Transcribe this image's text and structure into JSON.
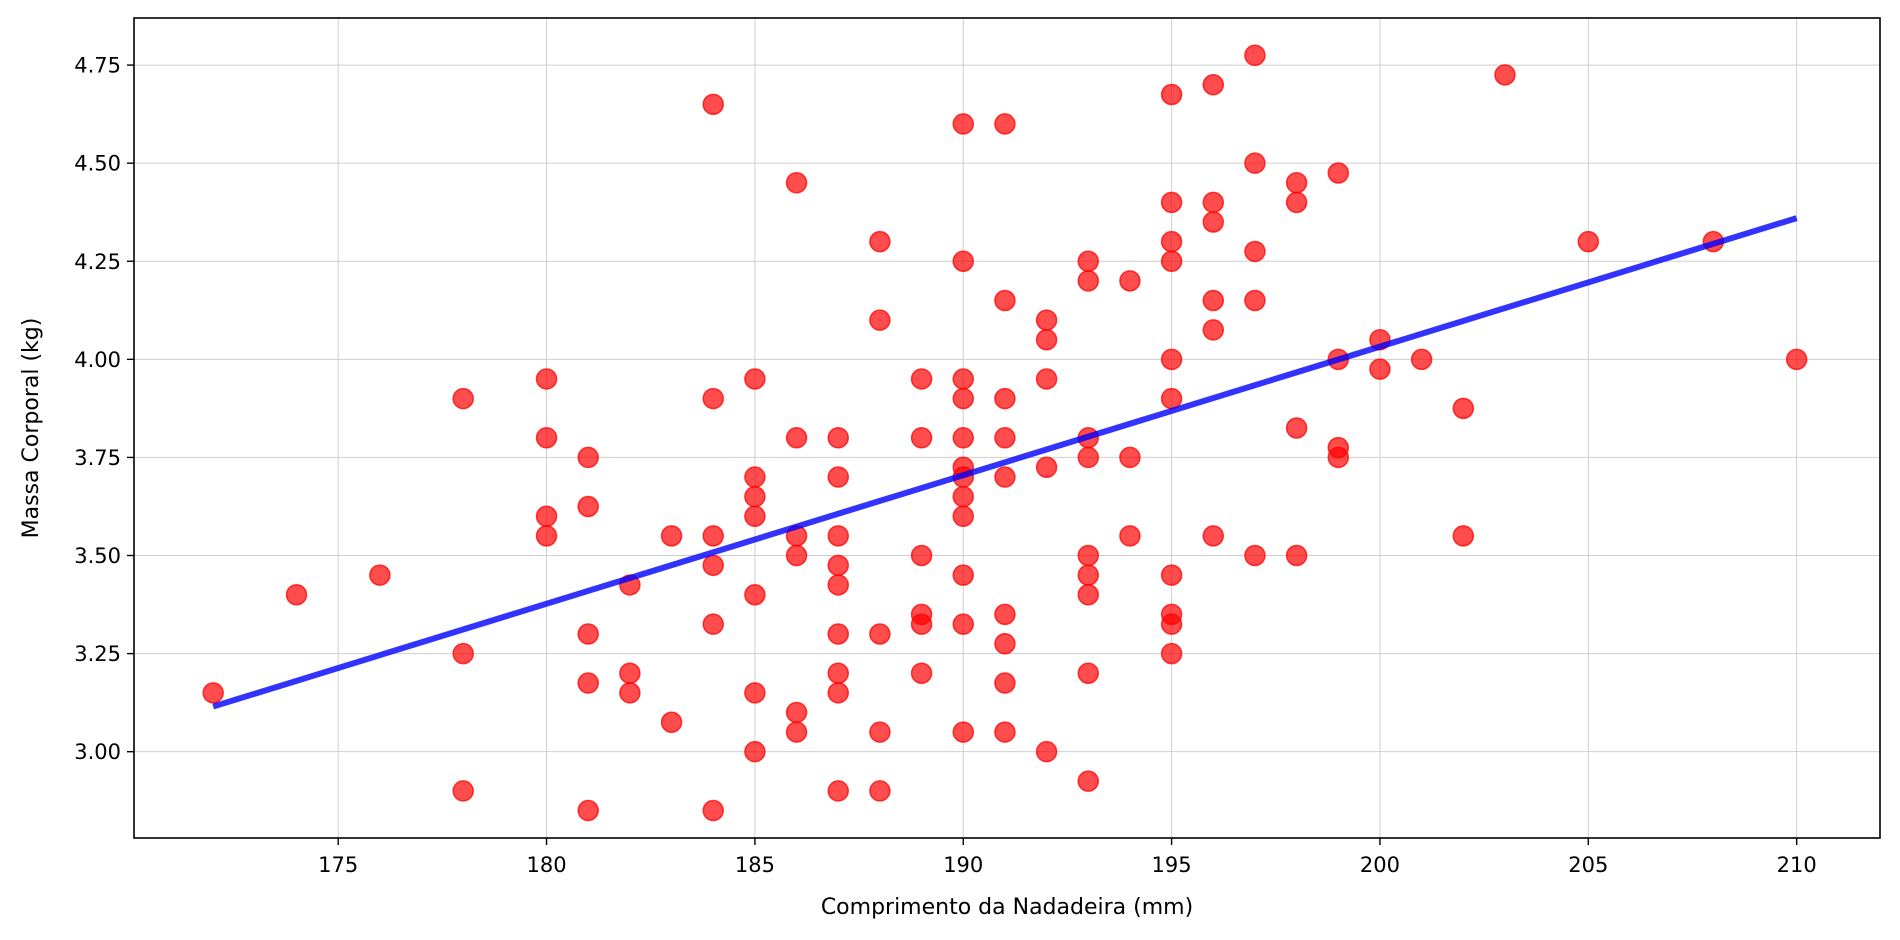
{
  "chart_data": {
    "type": "scatter",
    "title": "",
    "xlabel": "Comprimento da Nadadeira (mm)",
    "ylabel": "Massa Corporal (kg)",
    "xlim": [
      170.1,
      212.0
    ],
    "ylim": [
      2.78,
      4.87
    ],
    "x_ticks": [
      175,
      180,
      185,
      190,
      195,
      200,
      205,
      210
    ],
    "y_ticks": [
      3.0,
      3.25,
      3.5,
      3.75,
      4.0,
      4.25,
      4.5,
      4.75
    ],
    "x_tick_labels": [
      "175",
      "180",
      "185",
      "190",
      "195",
      "200",
      "205",
      "210"
    ],
    "y_tick_labels": [
      "3.00",
      "3.25",
      "3.50",
      "3.75",
      "4.00",
      "4.25",
      "4.50",
      "4.75"
    ],
    "grid": true,
    "legend": "none",
    "colors": {
      "points": "#ff0000",
      "trend": "#0000ff"
    },
    "points": [
      [
        172,
        3.15
      ],
      [
        174,
        3.4
      ],
      [
        176,
        3.45
      ],
      [
        178,
        3.9
      ],
      [
        178,
        3.25
      ],
      [
        178,
        2.9
      ],
      [
        180,
        3.95
      ],
      [
        180,
        3.8
      ],
      [
        180,
        3.6
      ],
      [
        180,
        3.55
      ],
      [
        181,
        3.75
      ],
      [
        181,
        3.625
      ],
      [
        181,
        3.3
      ],
      [
        181,
        3.175
      ],
      [
        181,
        2.85
      ],
      [
        182,
        3.425
      ],
      [
        182,
        3.2
      ],
      [
        182,
        3.15
      ],
      [
        183,
        3.55
      ],
      [
        183,
        3.075
      ],
      [
        184,
        4.65
      ],
      [
        184,
        3.9
      ],
      [
        184,
        3.55
      ],
      [
        184,
        3.475
      ],
      [
        184,
        3.325
      ],
      [
        184,
        2.85
      ],
      [
        185,
        3.95
      ],
      [
        185,
        3.7
      ],
      [
        185,
        3.65
      ],
      [
        185,
        3.6
      ],
      [
        185,
        3.4
      ],
      [
        185,
        3.15
      ],
      [
        185,
        3.0
      ],
      [
        186,
        4.45
      ],
      [
        186,
        3.8
      ],
      [
        186,
        3.55
      ],
      [
        186,
        3.5
      ],
      [
        186,
        3.1
      ],
      [
        186,
        3.05
      ],
      [
        187,
        3.8
      ],
      [
        187,
        3.7
      ],
      [
        187,
        3.55
      ],
      [
        187,
        3.475
      ],
      [
        187,
        3.425
      ],
      [
        187,
        3.3
      ],
      [
        187,
        3.2
      ],
      [
        187,
        3.15
      ],
      [
        187,
        2.9
      ],
      [
        188,
        4.3
      ],
      [
        188,
        4.1
      ],
      [
        188,
        3.3
      ],
      [
        188,
        3.05
      ],
      [
        188,
        2.9
      ],
      [
        189,
        3.95
      ],
      [
        189,
        3.8
      ],
      [
        189,
        3.5
      ],
      [
        189,
        3.35
      ],
      [
        189,
        3.325
      ],
      [
        189,
        3.2
      ],
      [
        190,
        4.6
      ],
      [
        190,
        4.25
      ],
      [
        190,
        3.95
      ],
      [
        190,
        3.9
      ],
      [
        190,
        3.8
      ],
      [
        190,
        3.725
      ],
      [
        190,
        3.7
      ],
      [
        190,
        3.65
      ],
      [
        190,
        3.6
      ],
      [
        190,
        3.45
      ],
      [
        190,
        3.325
      ],
      [
        190,
        3.05
      ],
      [
        191,
        4.6
      ],
      [
        191,
        4.15
      ],
      [
        191,
        3.9
      ],
      [
        191,
        3.8
      ],
      [
        191,
        3.7
      ],
      [
        191,
        3.35
      ],
      [
        191,
        3.275
      ],
      [
        191,
        3.175
      ],
      [
        191,
        3.05
      ],
      [
        192,
        4.1
      ],
      [
        192,
        4.05
      ],
      [
        192,
        3.95
      ],
      [
        192,
        3.725
      ],
      [
        192,
        3.0
      ],
      [
        193,
        4.25
      ],
      [
        193,
        4.2
      ],
      [
        193,
        3.8
      ],
      [
        193,
        3.75
      ],
      [
        193,
        3.5
      ],
      [
        193,
        3.45
      ],
      [
        193,
        3.4
      ],
      [
        193,
        3.2
      ],
      [
        193,
        2.925
      ],
      [
        194,
        4.2
      ],
      [
        194,
        3.75
      ],
      [
        194,
        3.55
      ],
      [
        195,
        4.675
      ],
      [
        195,
        4.4
      ],
      [
        195,
        4.3
      ],
      [
        195,
        4.25
      ],
      [
        195,
        4.0
      ],
      [
        195,
        3.9
      ],
      [
        195,
        3.45
      ],
      [
        195,
        3.35
      ],
      [
        195,
        3.325
      ],
      [
        195,
        3.25
      ],
      [
        196,
        4.7
      ],
      [
        196,
        4.4
      ],
      [
        196,
        4.35
      ],
      [
        196,
        4.15
      ],
      [
        196,
        4.075
      ],
      [
        196,
        3.55
      ],
      [
        197,
        4.775
      ],
      [
        197,
        4.5
      ],
      [
        197,
        4.275
      ],
      [
        197,
        4.15
      ],
      [
        197,
        3.5
      ],
      [
        198,
        4.45
      ],
      [
        198,
        4.4
      ],
      [
        198,
        3.825
      ],
      [
        198,
        3.5
      ],
      [
        199,
        4.475
      ],
      [
        199,
        4.0
      ],
      [
        199,
        3.775
      ],
      [
        199,
        3.75
      ],
      [
        200,
        4.05
      ],
      [
        200,
        3.975
      ],
      [
        201,
        4.0
      ],
      [
        202,
        3.875
      ],
      [
        202,
        3.55
      ],
      [
        203,
        4.725
      ],
      [
        205,
        4.3
      ],
      [
        208,
        4.3
      ],
      [
        210,
        4.0
      ]
    ],
    "trend_line": {
      "x": [
        172,
        210
      ],
      "y": [
        3.115,
        4.36
      ]
    }
  }
}
